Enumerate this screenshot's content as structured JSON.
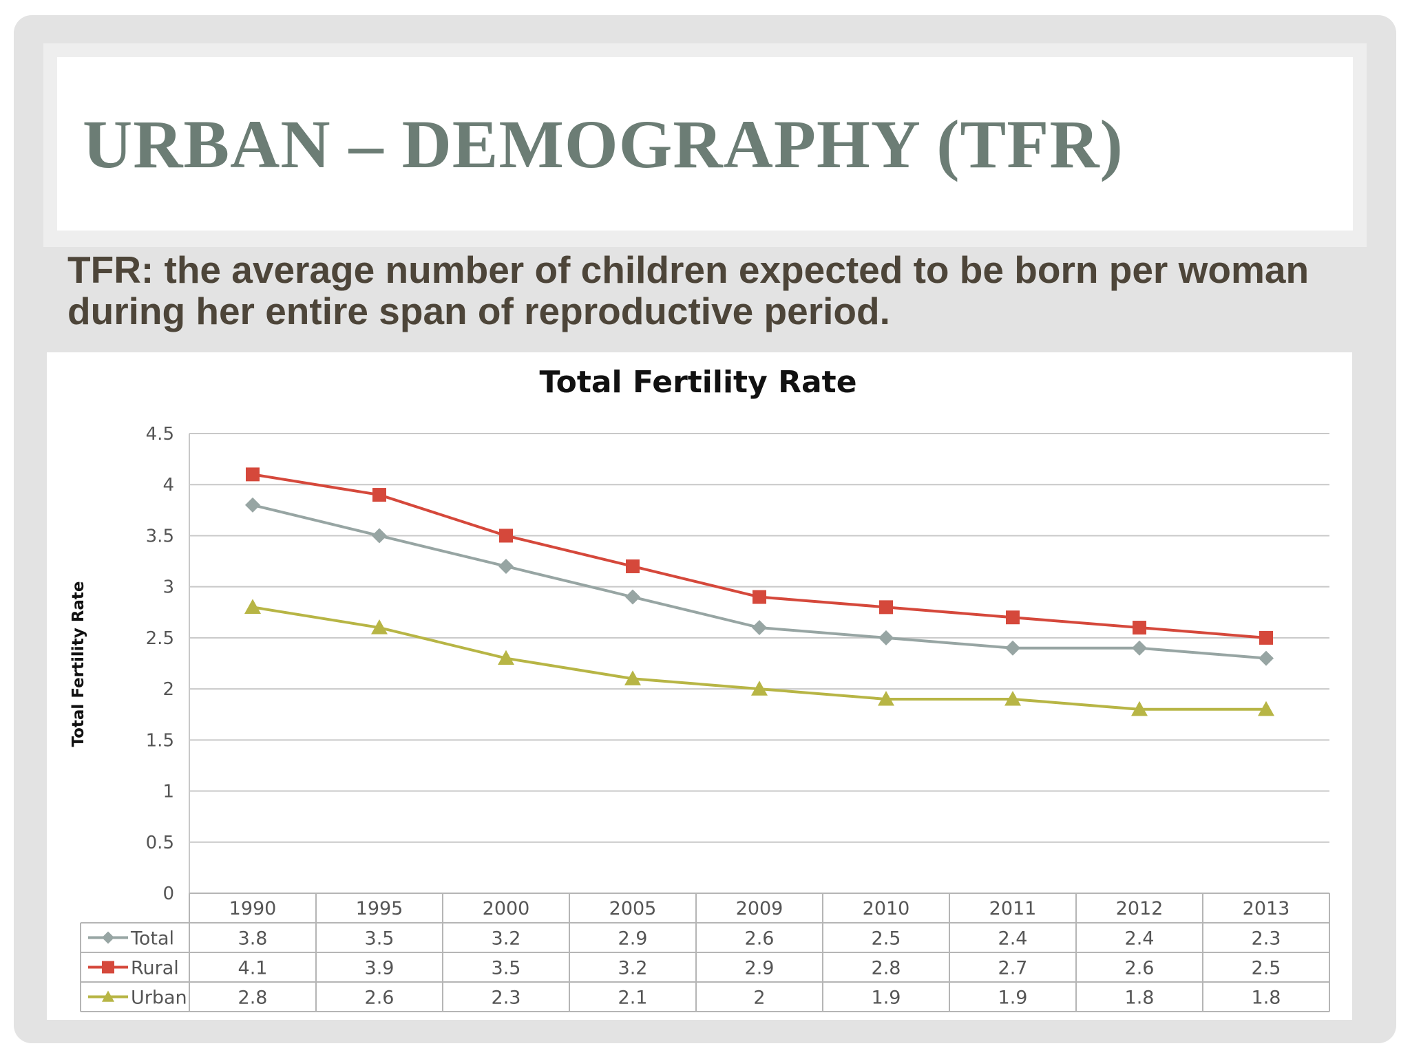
{
  "slide": {
    "title": "URBAN – DEMOGRAPHY (TFR)",
    "subtitle": "TFR: the average number of children expected to be born per woman during her entire span of reproductive period."
  },
  "chart_data": {
    "type": "line",
    "title": "Total Fertility Rate",
    "xlabel": "",
    "ylabel": "Total Fertility Rate",
    "ylim": [
      0,
      4.5
    ],
    "yticks": [
      "0",
      "0.5",
      "1",
      "1.5",
      "2",
      "2.5",
      "3",
      "3.5",
      "4",
      "4.5"
    ],
    "categories": [
      "1990",
      "1995",
      "2000",
      "2005",
      "2009",
      "2010",
      "2011",
      "2012",
      "2013"
    ],
    "grid": true,
    "legend": "data table below the chart",
    "series": [
      {
        "name": "Total",
        "color": "#97a5a3",
        "marker": "diamond",
        "values": [
          3.8,
          3.5,
          3.2,
          2.9,
          2.6,
          2.5,
          2.4,
          2.4,
          2.3
        ],
        "labels": [
          "3.8",
          "3.5",
          "3.2",
          "2.9",
          "2.6",
          "2.5",
          "2.4",
          "2.4",
          "2.3"
        ]
      },
      {
        "name": "Rural",
        "color": "#d5483b",
        "marker": "square",
        "values": [
          4.1,
          3.9,
          3.5,
          3.2,
          2.9,
          2.8,
          2.7,
          2.6,
          2.5
        ],
        "labels": [
          "4.1",
          "3.9",
          "3.5",
          "3.2",
          "2.9",
          "2.8",
          "2.7",
          "2.6",
          "2.5"
        ]
      },
      {
        "name": "Urban",
        "color": "#b7b545",
        "marker": "triangle",
        "values": [
          2.8,
          2.6,
          2.3,
          2.1,
          2,
          1.9,
          1.9,
          1.8,
          1.8
        ],
        "labels": [
          "2.8",
          "2.6",
          "2.3",
          "2.1",
          "2",
          "1.9",
          "1.9",
          "1.8",
          "1.8"
        ]
      }
    ]
  }
}
